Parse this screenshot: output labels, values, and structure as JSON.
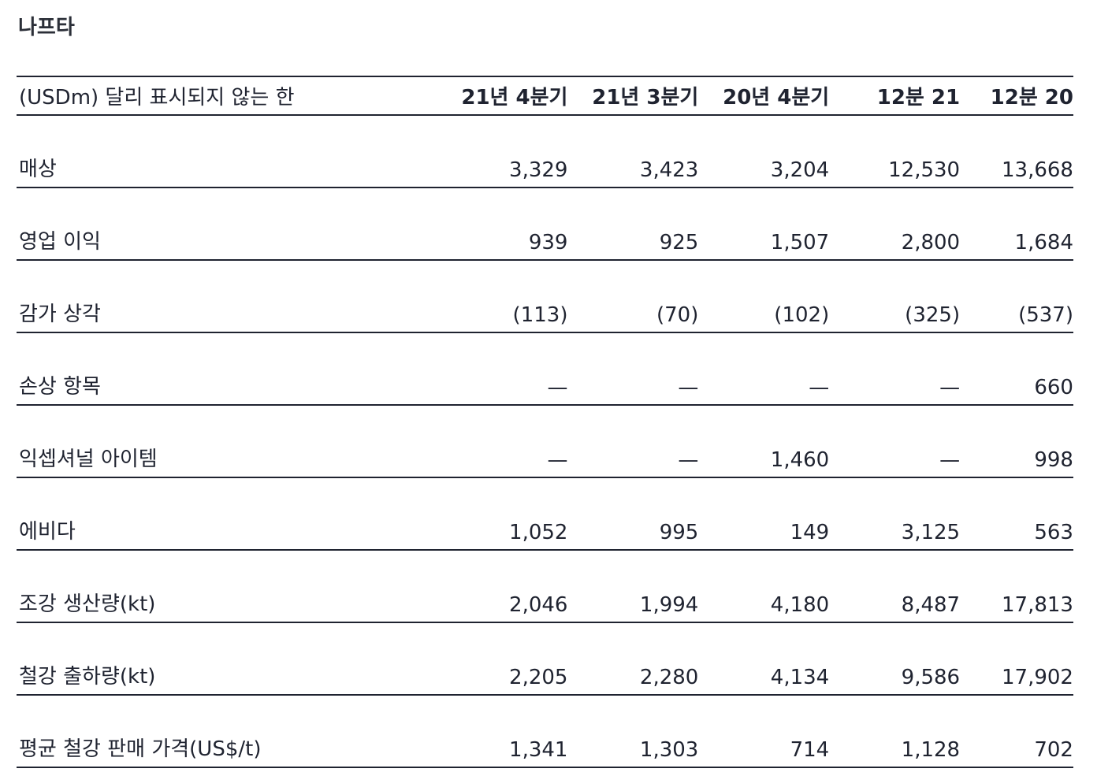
{
  "title": "나프타",
  "header": {
    "label": "(USDm) 달리 표시되지 않는 한",
    "columns": [
      "21년 4분기",
      "21년 3분기",
      "20년 4분기",
      "12분 21",
      "12분 20"
    ]
  },
  "rows": [
    {
      "label": "매상",
      "values": [
        "3,329",
        "3,423",
        "3,204",
        "12,530",
        "13,668"
      ]
    },
    {
      "label": "영업 이익",
      "values": [
        "939",
        "925",
        "1,507",
        "2,800",
        "1,684"
      ]
    },
    {
      "label": "감가 상각",
      "values": [
        "(113)",
        "(70)",
        "(102)",
        "(325)",
        "(537)"
      ]
    },
    {
      "label": "손상 항목",
      "values": [
        "—",
        "—",
        "—",
        "—",
        "660"
      ]
    },
    {
      "label": "익셉셔널 아이템",
      "values": [
        "—",
        "—",
        "1,460",
        "—",
        "998"
      ]
    },
    {
      "label": "에비다",
      "values": [
        "1,052",
        "995",
        "149",
        "3,125",
        "563"
      ]
    },
    {
      "label": "조강 생산량(kt)",
      "values": [
        "2,046",
        "1,994",
        "4,180",
        "8,487",
        "17,813"
      ]
    },
    {
      "label": "철강 출하량(kt)",
      "values": [
        "2,205",
        "2,280",
        "4,134",
        "9,586",
        "17,902"
      ]
    },
    {
      "label": "평균 철강 판매 가격(US$/t)",
      "values": [
        "1,341",
        "1,303",
        "714",
        "1,128",
        "702"
      ]
    }
  ]
}
